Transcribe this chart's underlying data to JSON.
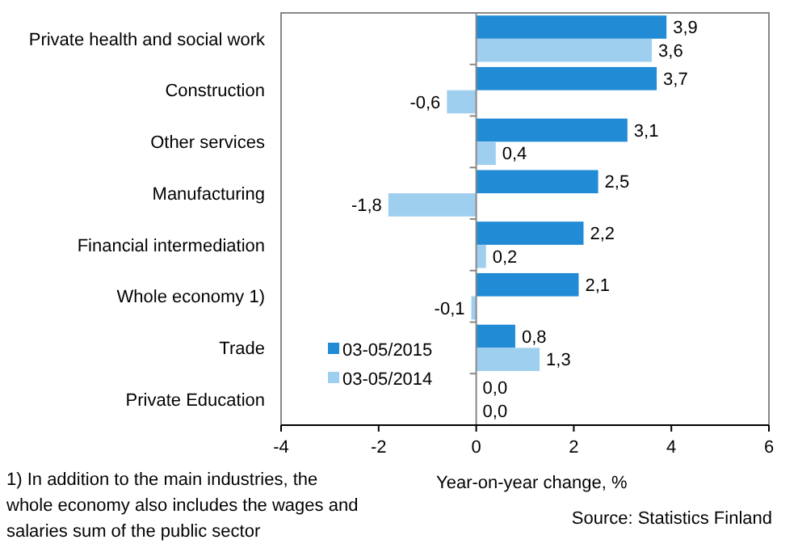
{
  "chart_data": {
    "type": "bar",
    "orientation": "horizontal",
    "categories": [
      "Private health and social work",
      "Construction",
      "Other services",
      "Manufacturing",
      "Financial intermediation",
      "Whole economy 1)",
      "Trade",
      "Private Education"
    ],
    "series": [
      {
        "name": "03-05/2015",
        "color": "#228bd5",
        "values": [
          3.9,
          3.7,
          3.1,
          2.5,
          2.2,
          2.1,
          0.8,
          0.0
        ],
        "value_labels": [
          "3,9",
          "3,7",
          "3,1",
          "2,5",
          "2,2",
          "2,1",
          "0,8",
          "0,0"
        ]
      },
      {
        "name": "03-05/2014",
        "color": "#9fcfef",
        "values": [
          3.6,
          -0.6,
          0.4,
          -1.8,
          0.2,
          -0.1,
          1.3,
          0.0
        ],
        "value_labels": [
          "3,6",
          "-0,6",
          "0,4",
          "-1,8",
          "0,2",
          "-0,1",
          "1,3",
          "0,0"
        ]
      }
    ],
    "xlim": [
      -4,
      6
    ],
    "xticks": [
      -4,
      -2,
      0,
      2,
      4,
      6
    ],
    "xlabel": "Year-on-year change,  %",
    "legend": "bottom left",
    "annotations": [
      "1) In addition to the  main industries, the whole economy also includes the wages and salaries sum of the public sector",
      "Source: Statistics  Finland"
    ]
  }
}
